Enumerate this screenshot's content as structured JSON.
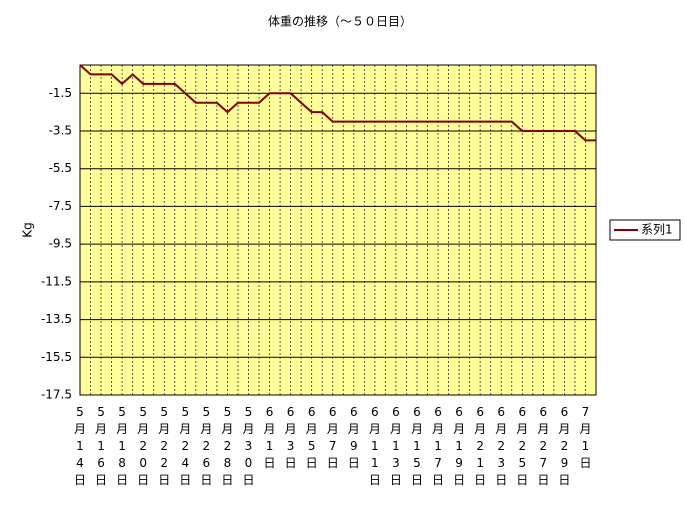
{
  "chart_data": {
    "type": "line",
    "title": "体重の推移（～５０日目）",
    "y_label": "Kg",
    "categories": [
      "5月14日",
      null,
      "5月16日",
      null,
      "5月18日",
      null,
      "5月20日",
      null,
      "5月22日",
      null,
      "5月24日",
      null,
      "5月26日",
      null,
      "5月28日",
      null,
      "5月30日",
      null,
      "6月1日",
      null,
      "6月3日",
      null,
      "6月5日",
      null,
      "6月7日",
      null,
      "6月9日",
      null,
      "6月11日",
      null,
      "6月13日",
      null,
      "6月15日",
      null,
      "6月17日",
      null,
      "6月19日",
      null,
      "6月21日",
      null,
      "6月23日",
      null,
      "6月25日",
      null,
      "6月27日",
      null,
      "6月29日",
      null,
      "7月1日",
      null
    ],
    "series": [
      {
        "name": "系列1",
        "color": "#800000",
        "values": [
          0,
          -0.5,
          -0.5,
          -0.5,
          -1.0,
          -0.5,
          -1.0,
          -1.0,
          -1.0,
          -1.0,
          -1.5,
          -2.0,
          -2.0,
          -2.0,
          -2.5,
          -2.0,
          -2.0,
          -2.0,
          -1.5,
          -1.5,
          -1.5,
          -2.0,
          -2.5,
          -2.5,
          -3.0,
          -3.0,
          -3.0,
          -3.0,
          -3.0,
          -3.0,
          -3.0,
          -3.0,
          -3.0,
          -3.0,
          -3.0,
          -3.0,
          -3.0,
          -3.0,
          -3.0,
          -3.0,
          -3.0,
          -3.0,
          -3.5,
          -3.5,
          -3.5,
          -3.5,
          -3.5,
          -3.5,
          -4.0,
          -4.0
        ]
      }
    ],
    "ylim": [
      -17.5,
      0
    ],
    "yticks": [
      -1.5,
      -3.5,
      -5.5,
      -7.5,
      -9.5,
      -11.5,
      -13.5,
      -15.5,
      -17.5
    ],
    "grid": true,
    "plot_color": "#ffff99",
    "legend": "right"
  }
}
